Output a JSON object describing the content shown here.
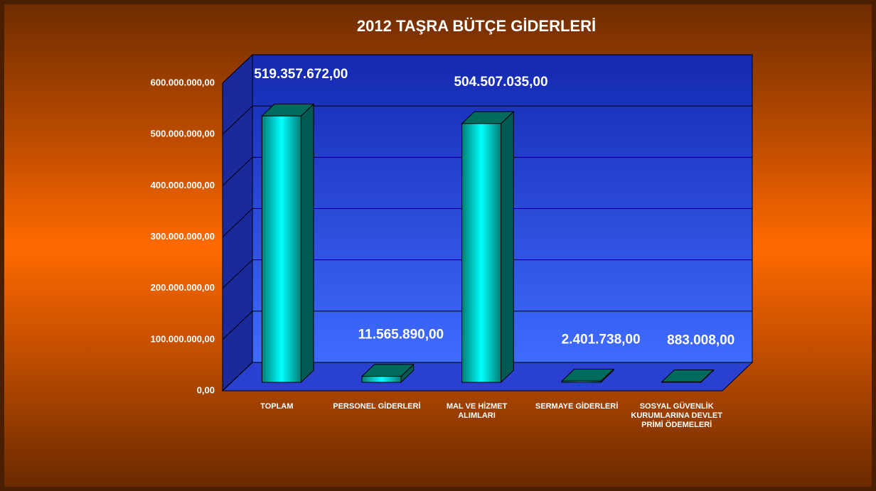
{
  "chart_data": {
    "type": "bar3d",
    "title": "2012 TAŞRA BÜTÇE GİDERLERİ",
    "categories": [
      "TOPLAM",
      "PERSONEL GİDERLERİ",
      "MAL VE HİZMET ALIMLARI",
      "SERMAYE GİDERLERİ",
      "SOSYAL GÜVENLİK KURUMLARINA DEVLET PRİMİ ÖDEMELERİ"
    ],
    "values": [
      519357672,
      11565890,
      504507035,
      2401738,
      883008
    ],
    "value_labels": [
      "519.357.672,00",
      "11.565.890,00",
      "504.507.035,00",
      "2.401.738,00",
      "883.008,00"
    ],
    "color": "#00b0a8",
    "ylim": [
      0,
      600000000
    ],
    "yticks": [
      {
        "value": 0,
        "label": "0,00"
      },
      {
        "value": 100000000,
        "label": "100.000.000,00"
      },
      {
        "value": 200000000,
        "label": "200.000.000,00"
      },
      {
        "value": 300000000,
        "label": "300.000.000,00"
      },
      {
        "value": 400000000,
        "label": "400.000.000,00"
      },
      {
        "value": 500000000,
        "label": "500.000.000,00"
      },
      {
        "value": 600000000,
        "label": "600.000.000,00"
      }
    ],
    "grid": true
  }
}
